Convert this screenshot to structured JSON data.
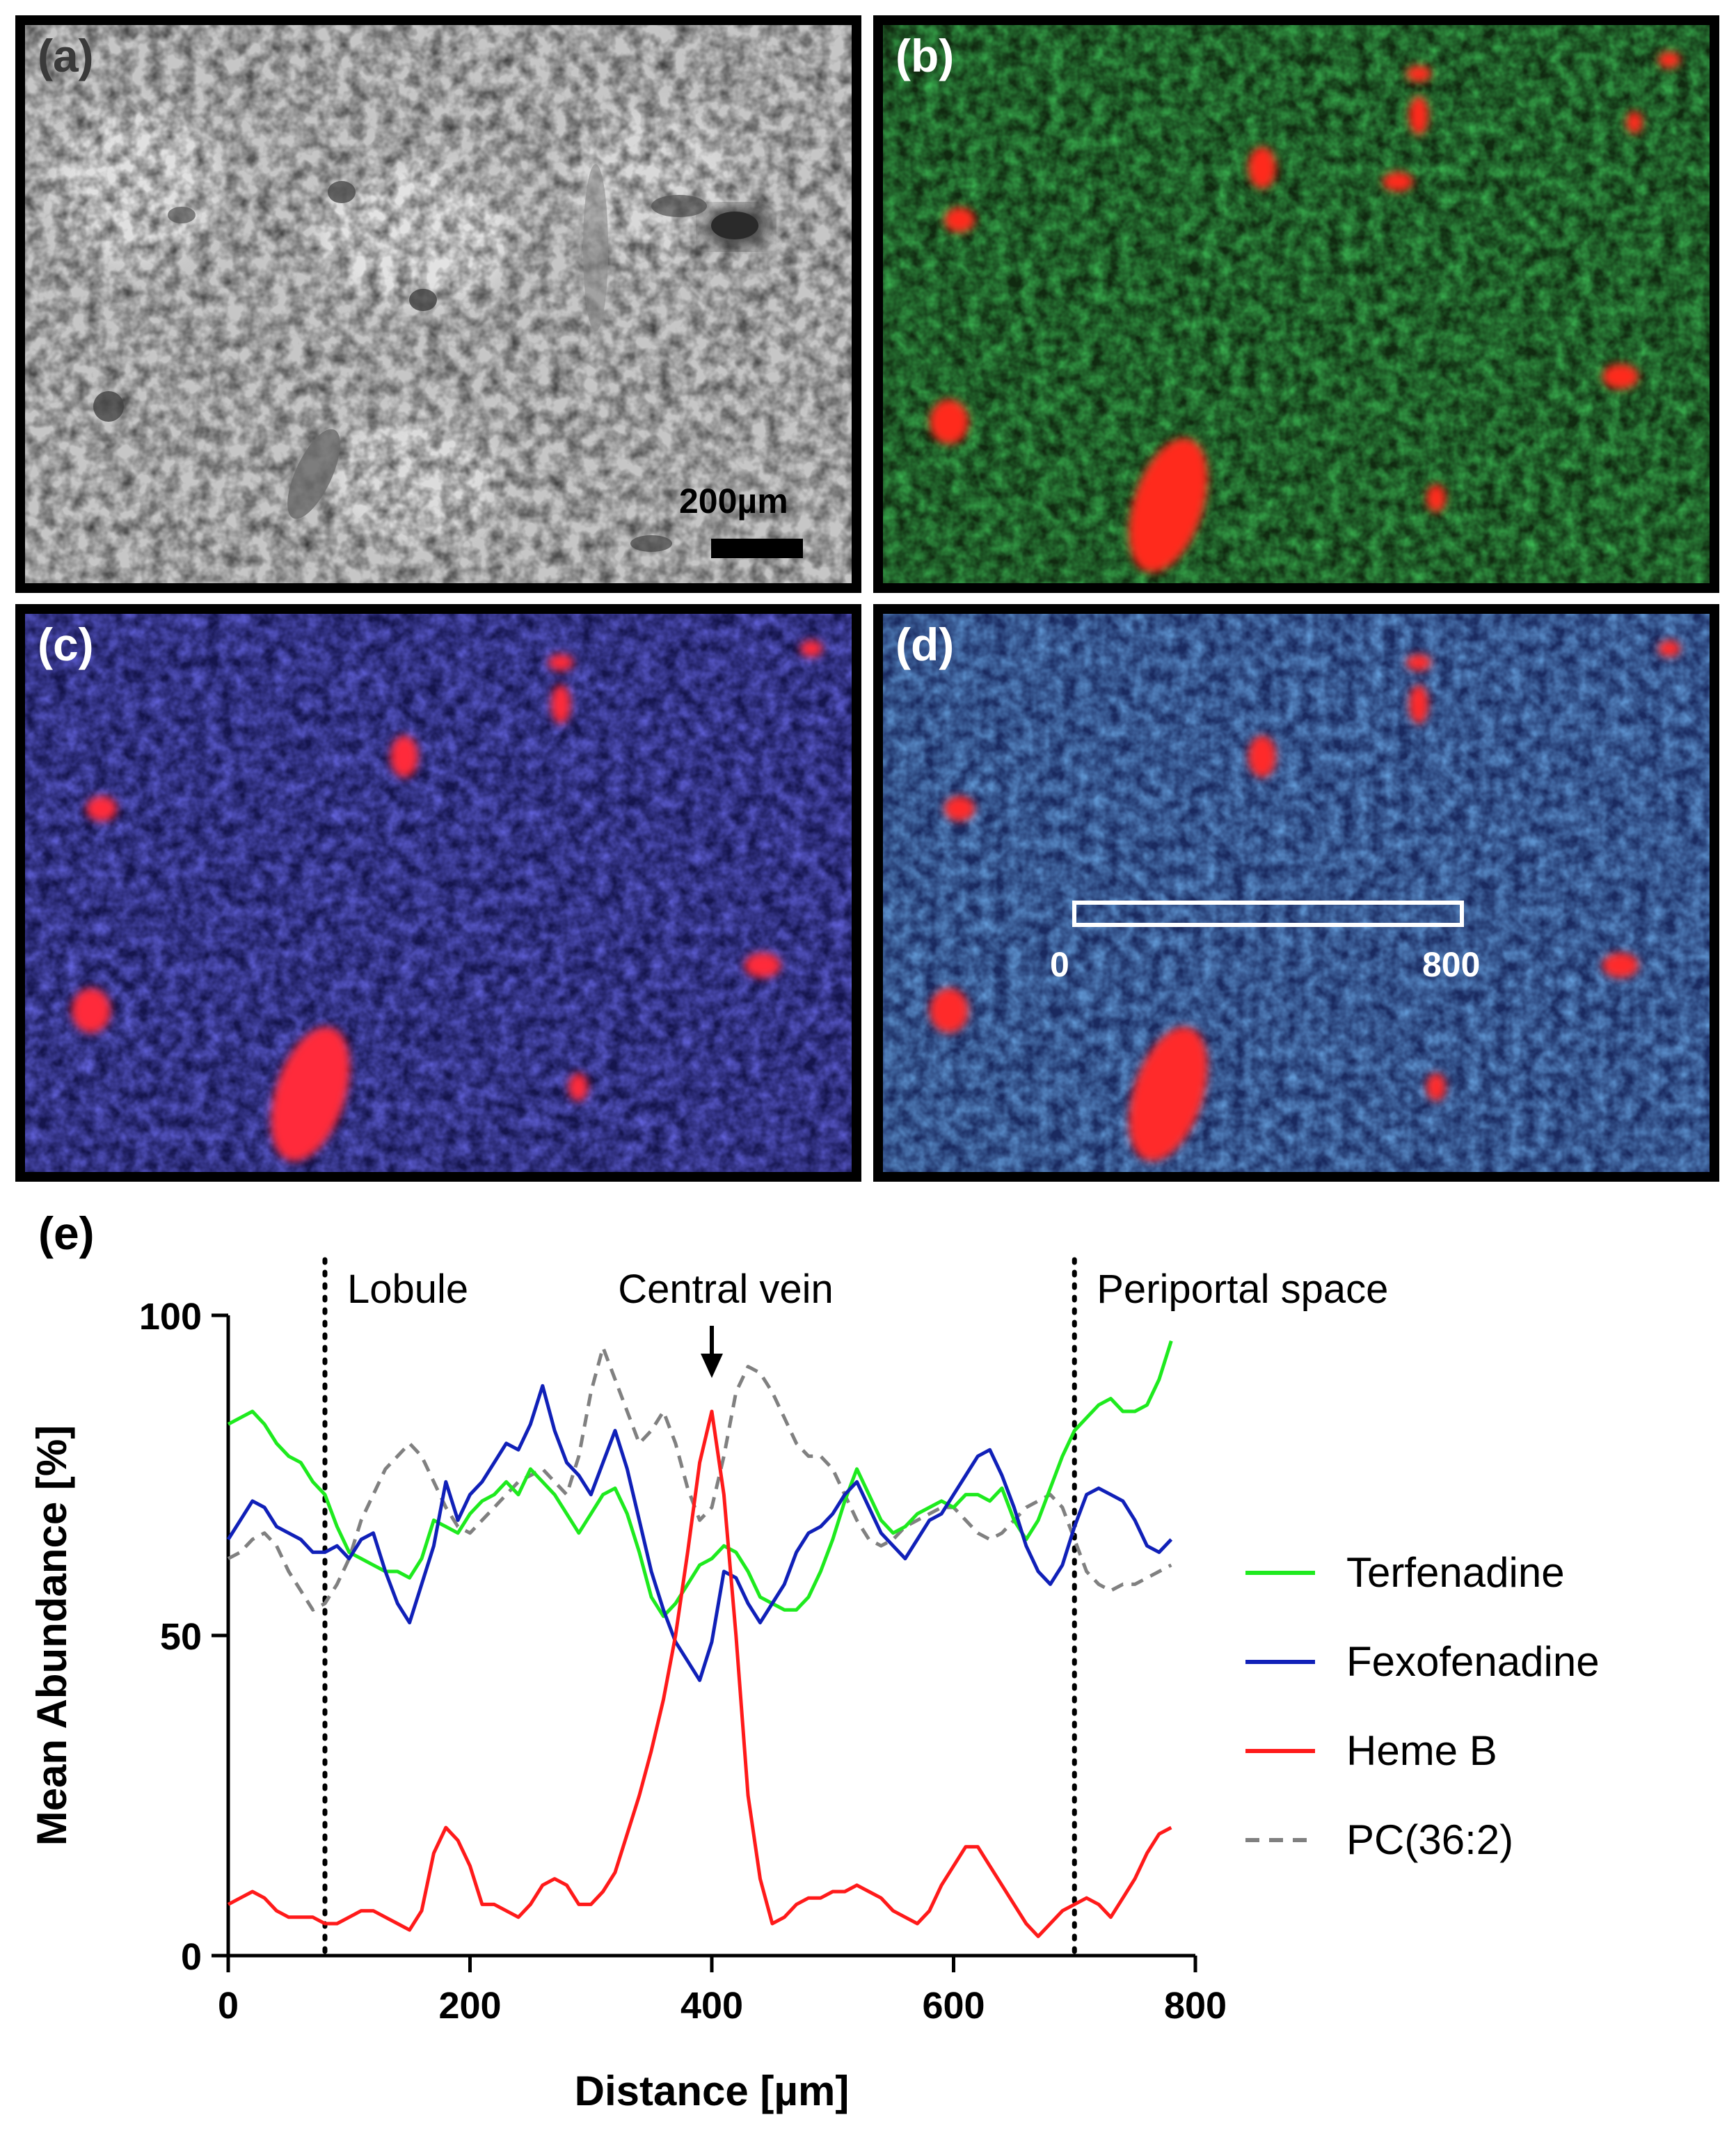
{
  "panels": [
    {
      "label": "(a)",
      "scale_bar_label": "200µm"
    },
    {
      "label": "(b)"
    },
    {
      "label": "(c)"
    },
    {
      "label": "(d)",
      "roi_start_label": "0",
      "roi_end_label": "800"
    }
  ],
  "colors": {
    "terfenadine": "#1eea1e",
    "fexofenadine": "#1020b8",
    "heme_b": "#ff1a1a",
    "pc_36_2": "#808080"
  },
  "chart_data": {
    "type": "line",
    "panel_label": "(e)",
    "title": "",
    "xlabel": "Distance [µm]",
    "ylabel": "Mean Abundance [%]",
    "xlim": [
      0,
      800
    ],
    "ylim": [
      0,
      100
    ],
    "xticks": [
      0,
      200,
      400,
      600,
      800
    ],
    "yticks": [
      0,
      50,
      100
    ],
    "grid": false,
    "legend_position": "right",
    "annotations": [
      {
        "text": "Lobule",
        "x": 80,
        "kind": "dotted-line"
      },
      {
        "text": "Central vein",
        "x": 400,
        "kind": "arrow"
      },
      {
        "text": "Periportal space",
        "x": 700,
        "kind": "dotted-line"
      }
    ],
    "series": [
      {
        "name": "Terfenadine",
        "style": "solid",
        "x": [
          0,
          10,
          20,
          30,
          40,
          50,
          60,
          70,
          80,
          90,
          100,
          110,
          120,
          130,
          140,
          150,
          160,
          170,
          180,
          190,
          200,
          210,
          220,
          230,
          240,
          250,
          260,
          270,
          280,
          290,
          300,
          310,
          320,
          330,
          340,
          350,
          360,
          370,
          380,
          390,
          400,
          410,
          420,
          430,
          440,
          450,
          460,
          470,
          480,
          490,
          500,
          510,
          520,
          530,
          540,
          550,
          560,
          570,
          580,
          590,
          600,
          610,
          620,
          630,
          640,
          650,
          660,
          670,
          680,
          690,
          700,
          710,
          720,
          730,
          740,
          750,
          760,
          770,
          780
        ],
        "values": [
          83,
          84,
          85,
          83,
          80,
          78,
          77,
          74,
          72,
          67,
          63,
          62,
          61,
          60,
          60,
          59,
          62,
          68,
          67,
          66,
          69,
          71,
          72,
          74,
          72,
          76,
          74,
          72,
          69,
          66,
          69,
          72,
          73,
          69,
          63,
          56,
          53,
          55,
          58,
          61,
          62,
          64,
          63,
          60,
          56,
          55,
          54,
          54,
          56,
          60,
          65,
          71,
          76,
          72,
          68,
          66,
          67,
          69,
          70,
          71,
          70,
          72,
          72,
          71,
          73,
          68,
          65,
          68,
          73,
          78,
          82,
          84,
          86,
          87,
          85,
          85,
          86,
          90,
          96
        ]
      },
      {
        "name": "Fexofenadine",
        "style": "solid",
        "x": [
          0,
          10,
          20,
          30,
          40,
          50,
          60,
          70,
          80,
          90,
          100,
          110,
          120,
          130,
          140,
          150,
          160,
          170,
          180,
          190,
          200,
          210,
          220,
          230,
          240,
          250,
          260,
          270,
          280,
          290,
          300,
          310,
          320,
          330,
          340,
          350,
          360,
          370,
          380,
          390,
          400,
          410,
          420,
          430,
          440,
          450,
          460,
          470,
          480,
          490,
          500,
          510,
          520,
          530,
          540,
          550,
          560,
          570,
          580,
          590,
          600,
          610,
          620,
          630,
          640,
          650,
          660,
          670,
          680,
          690,
          700,
          710,
          720,
          730,
          740,
          750,
          760,
          770,
          780
        ],
        "values": [
          65,
          68,
          71,
          70,
          67,
          66,
          65,
          63,
          63,
          64,
          62,
          65,
          66,
          60,
          55,
          52,
          58,
          64,
          74,
          68,
          72,
          74,
          77,
          80,
          79,
          83,
          89,
          82,
          77,
          75,
          72,
          77,
          82,
          76,
          68,
          60,
          54,
          49,
          46,
          43,
          49,
          60,
          59,
          55,
          52,
          55,
          58,
          63,
          66,
          67,
          69,
          72,
          74,
          70,
          66,
          64,
          62,
          65,
          68,
          69,
          72,
          75,
          78,
          79,
          75,
          70,
          64,
          60,
          58,
          61,
          67,
          72,
          73,
          72,
          71,
          68,
          64,
          63,
          65
        ]
      },
      {
        "name": "Heme B",
        "style": "solid",
        "x": [
          0,
          10,
          20,
          30,
          40,
          50,
          60,
          70,
          80,
          90,
          100,
          110,
          120,
          130,
          140,
          150,
          160,
          170,
          180,
          190,
          200,
          210,
          220,
          230,
          240,
          250,
          260,
          270,
          280,
          290,
          300,
          310,
          320,
          330,
          340,
          350,
          360,
          370,
          380,
          390,
          400,
          410,
          420,
          430,
          440,
          450,
          460,
          470,
          480,
          490,
          500,
          510,
          520,
          530,
          540,
          550,
          560,
          570,
          580,
          590,
          600,
          610,
          620,
          630,
          640,
          650,
          660,
          670,
          680,
          690,
          700,
          710,
          720,
          730,
          740,
          750,
          760,
          770,
          780
        ],
        "values": [
          8,
          9,
          10,
          9,
          7,
          6,
          6,
          6,
          5,
          5,
          6,
          7,
          7,
          6,
          5,
          4,
          7,
          16,
          20,
          18,
          14,
          8,
          8,
          7,
          6,
          8,
          11,
          12,
          11,
          8,
          8,
          10,
          13,
          19,
          25,
          32,
          40,
          50,
          63,
          77,
          85,
          72,
          50,
          25,
          12,
          5,
          6,
          8,
          9,
          9,
          10,
          10,
          11,
          10,
          9,
          7,
          6,
          5,
          7,
          11,
          14,
          17,
          17,
          14,
          11,
          8,
          5,
          3,
          5,
          7,
          8,
          9,
          8,
          6,
          9,
          12,
          16,
          19,
          20
        ]
      },
      {
        "name": "PC(36:2)",
        "style": "dashed",
        "x": [
          0,
          10,
          20,
          30,
          40,
          50,
          60,
          70,
          80,
          90,
          100,
          110,
          120,
          130,
          140,
          150,
          160,
          170,
          180,
          190,
          200,
          210,
          220,
          230,
          240,
          250,
          260,
          270,
          280,
          290,
          300,
          310,
          320,
          330,
          340,
          350,
          360,
          370,
          380,
          390,
          400,
          410,
          420,
          430,
          440,
          450,
          460,
          470,
          480,
          490,
          500,
          510,
          520,
          530,
          540,
          550,
          560,
          570,
          580,
          590,
          600,
          610,
          620,
          630,
          640,
          650,
          660,
          670,
          680,
          690,
          700,
          710,
          720,
          730,
          740,
          750,
          760,
          770,
          780
        ],
        "values": [
          62,
          63,
          65,
          66,
          64,
          60,
          57,
          54,
          55,
          58,
          62,
          68,
          72,
          76,
          78,
          80,
          78,
          74,
          70,
          67,
          66,
          68,
          70,
          72,
          74,
          75,
          76,
          74,
          72,
          78,
          88,
          95,
          90,
          85,
          80,
          82,
          85,
          80,
          73,
          68,
          70,
          78,
          88,
          92,
          91,
          88,
          84,
          80,
          78,
          78,
          76,
          72,
          68,
          65,
          64,
          65,
          67,
          68,
          69,
          70,
          70,
          68,
          66,
          65,
          66,
          68,
          70,
          71,
          72,
          70,
          65,
          60,
          58,
          57,
          58,
          58,
          59,
          60,
          61
        ]
      }
    ]
  }
}
